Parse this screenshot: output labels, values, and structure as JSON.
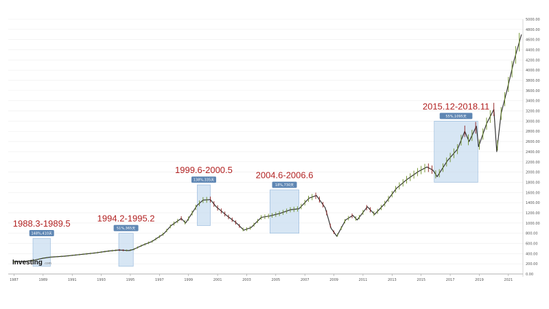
{
  "chart_data": {
    "type": "line",
    "title": "",
    "xlabel": "",
    "ylabel": "",
    "x_range": [
      1986.6,
      2022.0
    ],
    "x_ticks": [
      1987,
      1989,
      1991,
      1993,
      1995,
      1997,
      1999,
      2001,
      2003,
      2005,
      2007,
      2009,
      2011,
      2013,
      2015,
      2017,
      2019,
      2021
    ],
    "ylim": [
      0,
      5000
    ],
    "y_ticks": [
      0,
      200,
      400,
      600,
      800,
      1000,
      1200,
      1400,
      1600,
      1800,
      2000,
      2200,
      2400,
      2600,
      2800,
      3000,
      3200,
      3400,
      3600,
      3800,
      4000,
      4200,
      4400,
      4600,
      4800,
      5000
    ],
    "y_tick_labels": [
      "0.00",
      "200.00",
      "400.00",
      "600.00",
      "800.00",
      "1000.00",
      "1200.00",
      "1400.00",
      "1600.00",
      "1800.00",
      "2000.00",
      "2200.00",
      "2400.00",
      "2600.00",
      "2800.00",
      "3000.00",
      "3200.00",
      "3400.00",
      "3600.00",
      "3800.00",
      "4000.00",
      "4200.00",
      "4400.00",
      "4600.00",
      "4800.00",
      "5000.00"
    ],
    "grid": "horizontal",
    "series": [
      {
        "x": [
          1987.0,
          1987.8,
          1988.3,
          1989.0,
          1989.5,
          1990.5,
          1991.5,
          1992.5,
          1993.5,
          1994.2,
          1994.9,
          1995.2,
          1995.8,
          1996.5,
          1997.3,
          1997.8,
          1998.5,
          1998.8,
          1999.6,
          2000.0,
          2000.5,
          2000.9,
          2001.7,
          2002.3,
          2002.8,
          2003.3,
          2004.0,
          2004.6,
          2005.3,
          2006.0,
          2006.6,
          2007.3,
          2007.8,
          2008.4,
          2008.8,
          2009.2,
          2009.8,
          2010.3,
          2010.6,
          2011.3,
          2011.8,
          2012.5,
          2013.3,
          2014.0,
          2014.8,
          2015.4,
          2015.8,
          2015.9,
          2016.1,
          2016.8,
          2017.5,
          2018.0,
          2018.3,
          2018.8,
          2018.95,
          2019.5,
          2020.0,
          2020.2,
          2020.5,
          2020.9,
          2021.4,
          2021.9
        ],
        "values": [
          240,
          250,
          265,
          310,
          330,
          350,
          380,
          410,
          450,
          470,
          460,
          480,
          560,
          640,
          790,
          950,
          1090,
          1000,
          1350,
          1450,
          1460,
          1320,
          1130,
          1000,
          860,
          910,
          1110,
          1140,
          1190,
          1260,
          1280,
          1490,
          1540,
          1300,
          900,
          740,
          1060,
          1150,
          1060,
          1320,
          1170,
          1380,
          1680,
          1850,
          2010,
          2100,
          2040,
          2000,
          1910,
          2220,
          2450,
          2800,
          2600,
          2900,
          2500,
          2950,
          3230,
          2400,
          3150,
          3600,
          4200,
          4700
        ]
      }
    ],
    "annotations": [
      {
        "label": "1988.3-1989.5",
        "tag": "148%,410天",
        "x_start": 1988.3,
        "x_end": 1989.5,
        "y_bottom": 150,
        "y_top": 700
      },
      {
        "label": "1994.2-1995.2",
        "tag": "51%,365天",
        "x_start": 1994.2,
        "x_end": 1995.2,
        "y_bottom": 150,
        "y_top": 800
      },
      {
        "label": "1999.6-2000.5",
        "tag": "138%,335天",
        "x_start": 1999.6,
        "x_end": 2000.5,
        "y_bottom": 950,
        "y_top": 1750
      },
      {
        "label": "2004.6-2006.6",
        "tag": "18%,730天",
        "x_start": 2004.6,
        "x_end": 2006.6,
        "y_bottom": 800,
        "y_top": 1650
      },
      {
        "label": "2015.12-2018.11",
        "tag": "55%,1095天",
        "x_start": 2015.9,
        "x_end": 2018.9,
        "y_bottom": 1800,
        "y_top": 3000
      }
    ]
  },
  "watermark": {
    "brand": "Investing",
    "suffix": ".com"
  },
  "colors": {
    "line": "#333333",
    "up": "#6b8e23",
    "down": "#8b1a1a",
    "annotation_fill": "#c6dcf0",
    "annotation_border": "#8fb3d9",
    "tag_bg": "#5e86b3",
    "label": "#b22222",
    "grid": "#eeeeee"
  }
}
